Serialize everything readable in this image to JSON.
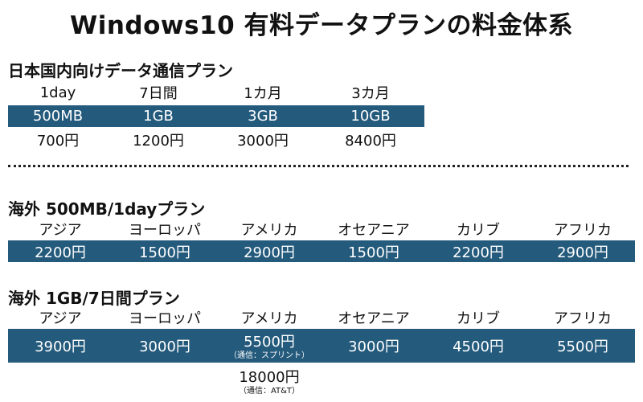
{
  "title": "Windows10 有料データプランの料金体系",
  "domestic": {
    "heading": "日本国内向けデータ通信プラン",
    "periods": [
      "1day",
      "7日間",
      "1カ月",
      "3カ月"
    ],
    "data": [
      "500MB",
      "1GB",
      "3GB",
      "10GB"
    ],
    "prices": [
      "700円",
      "1200円",
      "3000円",
      "8400円"
    ]
  },
  "overseas_500mb": {
    "heading": "海外 500MB/1dayプラン",
    "regions": [
      "アジア",
      "ヨーロッパ",
      "アメリカ",
      "オセアニア",
      "カリブ",
      "アフリカ"
    ],
    "prices": [
      "2200円",
      "1500円",
      "2900円",
      "1500円",
      "2200円",
      "2900円"
    ]
  },
  "overseas_1gb": {
    "heading": "海外 1GB/7日間プラン",
    "regions": [
      "アジア",
      "ヨーロッパ",
      "アメリカ",
      "オセアニア",
      "カリブ",
      "アフリカ"
    ],
    "prices": [
      "3900円",
      "3000円",
      "5500円",
      "3000円",
      "4500円",
      "5500円"
    ],
    "america_note": "（通信：スプリント）",
    "america_alt_price": "18000円",
    "america_alt_note": "（通信：AT&T）"
  },
  "colors": {
    "band": "#245a7c"
  }
}
